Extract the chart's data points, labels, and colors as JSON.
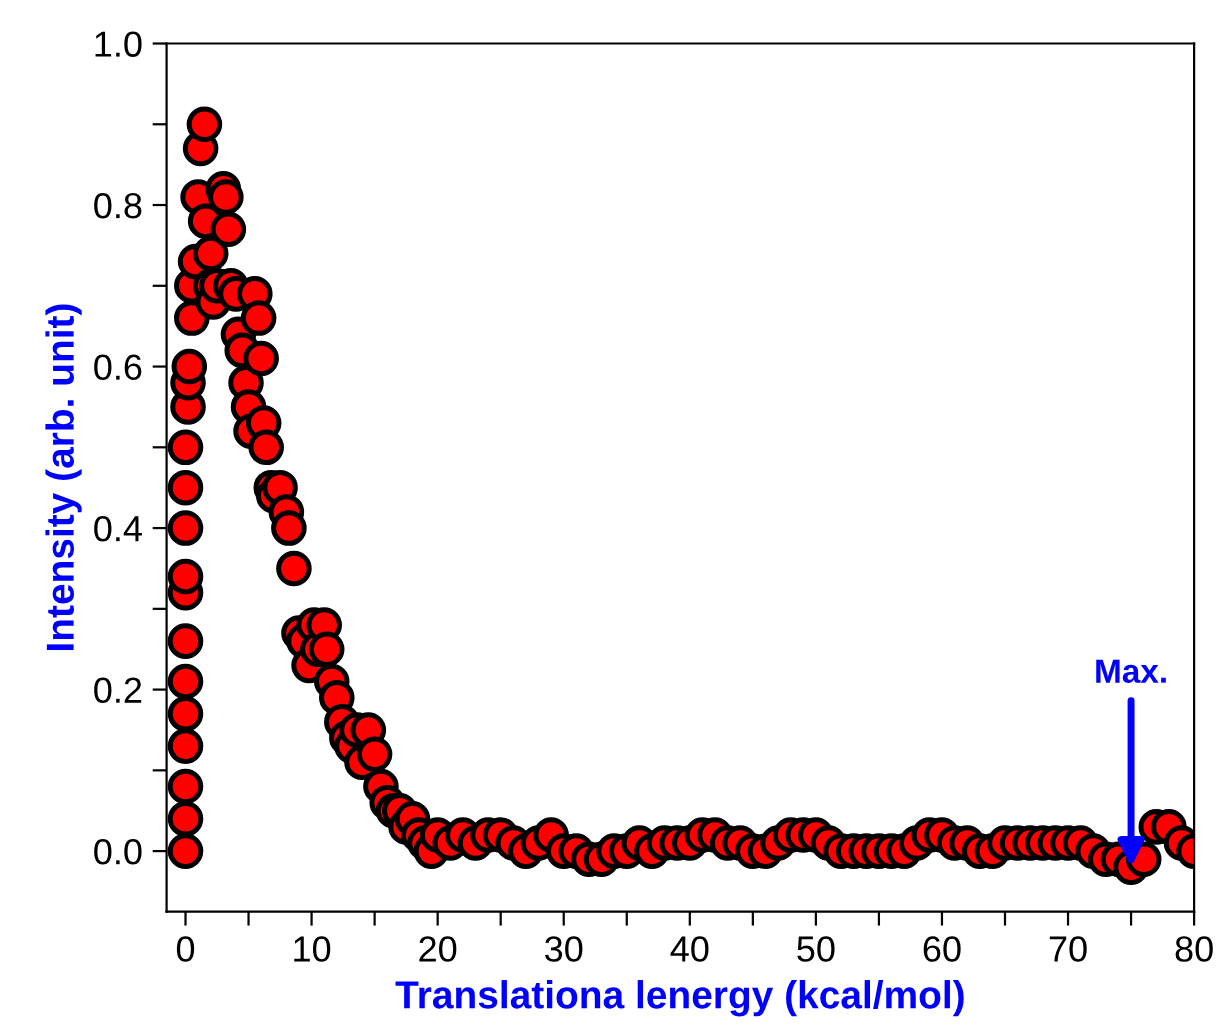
{
  "chart_data": {
    "type": "scatter",
    "xlabel": "Translationa lenergy (kcal/mol)",
    "ylabel": "Intensity (arb. unit)",
    "xlim": [
      -1.5,
      80
    ],
    "ylim": [
      -0.075,
      1.0
    ],
    "xticks": [
      0,
      {
        "value": 5,
        "label": null
      },
      10,
      {
        "value": 15,
        "label": null
      },
      20,
      {
        "value": 25,
        "label": null
      },
      30,
      {
        "value": 35,
        "label": null
      },
      40,
      {
        "value": 45,
        "label": null
      },
      50,
      {
        "value": 55,
        "label": null
      },
      60,
      {
        "value": 65,
        "label": null
      },
      70,
      {
        "value": 75,
        "label": null
      },
      80
    ],
    "yticks": [
      {
        "value": 0.0,
        "label": "0.0"
      },
      {
        "value": 0.1,
        "label": null
      },
      0.2,
      {
        "value": 0.3,
        "label": null
      },
      0.4,
      {
        "value": 0.5,
        "label": null
      },
      0.6,
      {
        "value": 0.7,
        "label": null
      },
      0.8,
      {
        "value": 0.9,
        "label": null
      },
      {
        "value": 1.0,
        "label": "1.0"
      }
    ],
    "marker": "circle",
    "grid": false,
    "legend": false,
    "annotations": [
      {
        "text": "Max.",
        "x": 75,
        "y": -0.02
      }
    ],
    "series": [
      {
        "color": "#ff0000",
        "x": [
          0,
          0,
          0,
          0,
          0,
          0,
          0,
          0,
          0,
          0,
          0,
          0,
          0.2,
          0.2,
          0.3,
          0.5,
          0.5,
          0.8,
          1,
          1.2,
          1.5,
          1.6,
          2,
          2,
          2.2,
          2.5,
          3,
          3.2,
          3.4,
          3.6,
          4,
          4.2,
          4.5,
          4.8,
          5,
          5.2,
          5.5,
          5.8,
          6,
          6.2,
          6.4,
          6.8,
          7,
          7.5,
          8,
          8.2,
          8.6,
          9,
          9.4,
          9.8,
          10.2,
          10.5,
          11,
          11.2,
          11.6,
          12,
          12.4,
          12.8,
          13.2,
          13.6,
          14,
          14.5,
          15,
          15.5,
          16,
          16.5,
          17,
          17.5,
          18,
          18.5,
          19,
          19.5,
          20,
          21,
          22,
          23,
          24,
          25,
          26,
          27,
          28,
          29,
          30,
          31,
          32,
          33,
          34,
          35,
          36,
          37,
          38,
          39,
          40,
          41,
          42,
          43,
          44,
          45,
          46,
          47,
          48,
          49,
          50,
          51,
          52,
          53,
          54,
          55,
          56,
          57,
          58,
          59,
          60,
          61,
          62,
          63,
          64,
          65,
          66,
          67,
          68,
          69,
          70,
          71,
          72,
          73,
          74,
          75,
          76,
          77,
          78,
          79,
          80
        ],
        "values": [
          0.0,
          0.04,
          0.08,
          0.13,
          0.17,
          0.21,
          0.26,
          0.32,
          0.34,
          0.4,
          0.45,
          0.5,
          0.55,
          0.58,
          0.6,
          0.66,
          0.7,
          0.73,
          0.81,
          0.87,
          0.9,
          0.78,
          0.74,
          0.7,
          0.68,
          0.7,
          0.82,
          0.81,
          0.77,
          0.7,
          0.69,
          0.64,
          0.62,
          0.58,
          0.55,
          0.52,
          0.69,
          0.66,
          0.61,
          0.53,
          0.5,
          0.45,
          0.44,
          0.45,
          0.42,
          0.4,
          0.35,
          0.27,
          0.26,
          0.23,
          0.28,
          0.25,
          0.28,
          0.25,
          0.21,
          0.19,
          0.16,
          0.14,
          0.13,
          0.15,
          0.11,
          0.15,
          0.12,
          0.08,
          0.06,
          0.05,
          0.05,
          0.03,
          0.04,
          0.02,
          0.01,
          0.0,
          0.02,
          0.01,
          0.02,
          0.01,
          0.02,
          0.02,
          0.01,
          0.0,
          0.01,
          0.02,
          0.0,
          0.0,
          -0.01,
          -0.01,
          0.0,
          0.0,
          0.01,
          0.0,
          0.01,
          0.01,
          0.01,
          0.02,
          0.02,
          0.01,
          0.01,
          0.0,
          0.0,
          0.01,
          0.02,
          0.02,
          0.02,
          0.01,
          0.0,
          0.0,
          0.0,
          0.0,
          0.0,
          0.0,
          0.01,
          0.02,
          0.02,
          0.01,
          0.01,
          0.0,
          0.0,
          0.01,
          0.01,
          0.01,
          0.01,
          0.01,
          0.01,
          0.01,
          0.0,
          -0.01,
          -0.01,
          -0.02,
          -0.01,
          0.03,
          0.03,
          0.01,
          0.0
        ]
      }
    ]
  }
}
